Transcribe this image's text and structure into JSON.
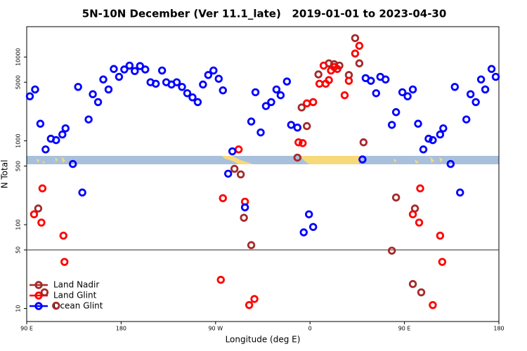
{
  "chart_data": {
    "type": "scatter",
    "title": "5N-10N December (Ver 11.1_late)   2019-01-01 to 2023-04-30",
    "x_label": "Longitude (deg E)",
    "y_label": "N Total",
    "xlim": [
      -270,
      180
    ],
    "xticks": [
      {
        "value": -270,
        "label": "90 E"
      },
      {
        "value": -180,
        "label": "180"
      },
      {
        "value": -90,
        "label": "90 W"
      },
      0,
      {
        "value": 90,
        "label": "90 E"
      },
      {
        "value": 180,
        "label": "180"
      }
    ],
    "ylim": [
      7,
      23000
    ],
    "yticks": [
      10,
      50,
      100,
      500,
      1000,
      5000,
      10000
    ],
    "log_y": true,
    "reference_line": 50,
    "legend": "bottom-left",
    "series": [
      {
        "name": "Land Nadir",
        "color": "#a52a2a",
        "x": [
          -259,
          -253,
          -242,
          -72,
          -66,
          -63,
          -56,
          -12,
          -8,
          -3,
          8,
          18,
          23,
          28,
          37,
          43,
          47,
          51,
          78,
          82,
          100,
          98,
          106
        ],
        "values": [
          156,
          15.6,
          10.8,
          464,
          398,
          121,
          57,
          631,
          2500,
          1500,
          6200,
          8400,
          8200,
          7900,
          6100,
          16800,
          8400,
          960,
          49,
          211,
          156,
          19.6,
          15.6
        ]
      },
      {
        "name": "Land Glint",
        "color": "#ff0000",
        "x": [
          -263,
          -255,
          -256,
          -235,
          -234,
          -85,
          -83,
          -68,
          -62,
          -58,
          -53,
          -11,
          -7,
          -3,
          3,
          9,
          13,
          15,
          18,
          20,
          23,
          26,
          33,
          37,
          43,
          47,
          98,
          105,
          104,
          124,
          126,
          117
        ],
        "values": [
          133,
          271,
          106,
          74,
          36,
          22,
          207,
          790,
          188,
          11,
          13,
          960,
          940,
          2800,
          2900,
          4800,
          7900,
          4800,
          5300,
          6900,
          7600,
          7200,
          3500,
          5200,
          11000,
          13600,
          133,
          271,
          106,
          74,
          36,
          11
        ]
      },
      {
        "name": "Ocean Glint",
        "color": "#0000ff",
        "x": [
          -267,
          -262,
          -257,
          -252,
          -247,
          -242,
          -236,
          -233,
          -226,
          -221,
          -217,
          -211,
          -207,
          -202,
          -197,
          -192,
          -187,
          -182,
          -177,
          -172,
          -167,
          -162,
          -157,
          -152,
          -147,
          -141,
          -137,
          -132,
          -127,
          -122,
          -117,
          -112,
          -107,
          -102,
          -97,
          -92,
          -87,
          -83,
          -78,
          -74,
          -62,
          -56,
          -52,
          -47,
          -42,
          -37,
          -32,
          -28,
          -22,
          -18,
          -12,
          -6,
          -1,
          3,
          50,
          53,
          58,
          63,
          67,
          72,
          78,
          82,
          88,
          93,
          98,
          103,
          108,
          113,
          117,
          124,
          127,
          134,
          138,
          143,
          149,
          153,
          158,
          163,
          167,
          173,
          177
        ],
        "values": [
          3400,
          4100,
          1600,
          790,
          1060,
          1020,
          1190,
          1410,
          530,
          4400,
          242,
          1800,
          3600,
          2900,
          5400,
          4100,
          7200,
          5800,
          7100,
          7900,
          6800,
          7800,
          7100,
          5000,
          4800,
          6900,
          5000,
          4700,
          5000,
          4400,
          3700,
          3300,
          2900,
          4700,
          6100,
          6900,
          5500,
          4000,
          406,
          750,
          161,
          1700,
          3800,
          1260,
          2600,
          2900,
          4100,
          3500,
          5100,
          1550,
          1440,
          81,
          133,
          94,
          600,
          5600,
          5200,
          3700,
          5800,
          5400,
          1550,
          2200,
          3800,
          3400,
          4100,
          1600,
          790,
          1060,
          1020,
          1190,
          1410,
          530,
          4400,
          242,
          1800,
          3600,
          2900,
          5400,
          4100,
          7200,
          5800
        ]
      }
    ]
  }
}
